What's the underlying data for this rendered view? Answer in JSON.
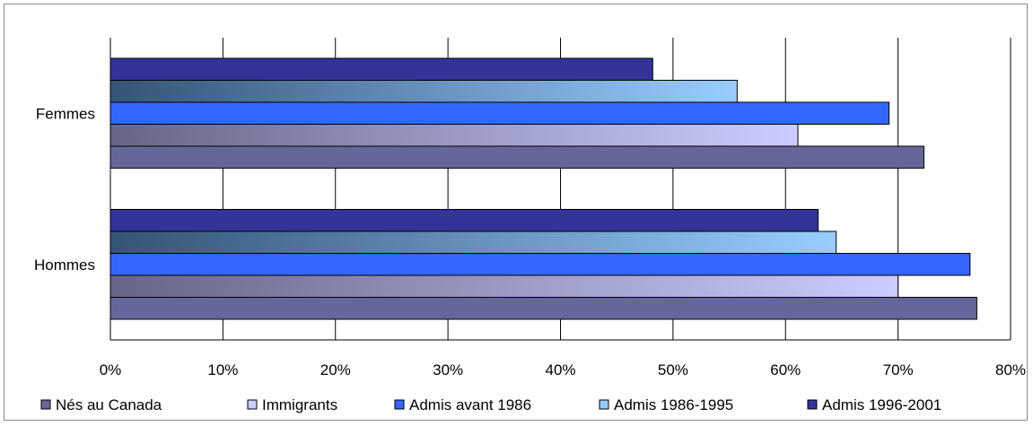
{
  "chart_data": {
    "type": "bar",
    "orientation": "horizontal",
    "categories": [
      "Hommes",
      "Femmes"
    ],
    "series": [
      {
        "name": "Nés au Canada",
        "values": [
          0.77,
          0.723
        ],
        "color": "#66669a",
        "gradient": false
      },
      {
        "name": "Immigrants",
        "values": [
          0.7,
          0.611
        ],
        "color": "#ccccff",
        "color_start": "#666688",
        "gradient": true
      },
      {
        "name": "Admis avant 1986",
        "values": [
          0.764,
          0.692
        ],
        "color": "#3366ff",
        "gradient": false
      },
      {
        "name": "Admis 1986-1995",
        "values": [
          0.645,
          0.557
        ],
        "color": "#99ccff",
        "color_start": "#335577",
        "gradient": true
      },
      {
        "name": "Admis 1996-2001",
        "values": [
          0.629,
          0.482
        ],
        "color": "#333399",
        "gradient": false
      }
    ],
    "x_ticks": [
      "0%",
      "10%",
      "20%",
      "30%",
      "40%",
      "50%",
      "60%",
      "70%",
      "80%"
    ],
    "xlim": [
      0,
      0.8
    ],
    "grid": true,
    "legend_position": "bottom"
  }
}
